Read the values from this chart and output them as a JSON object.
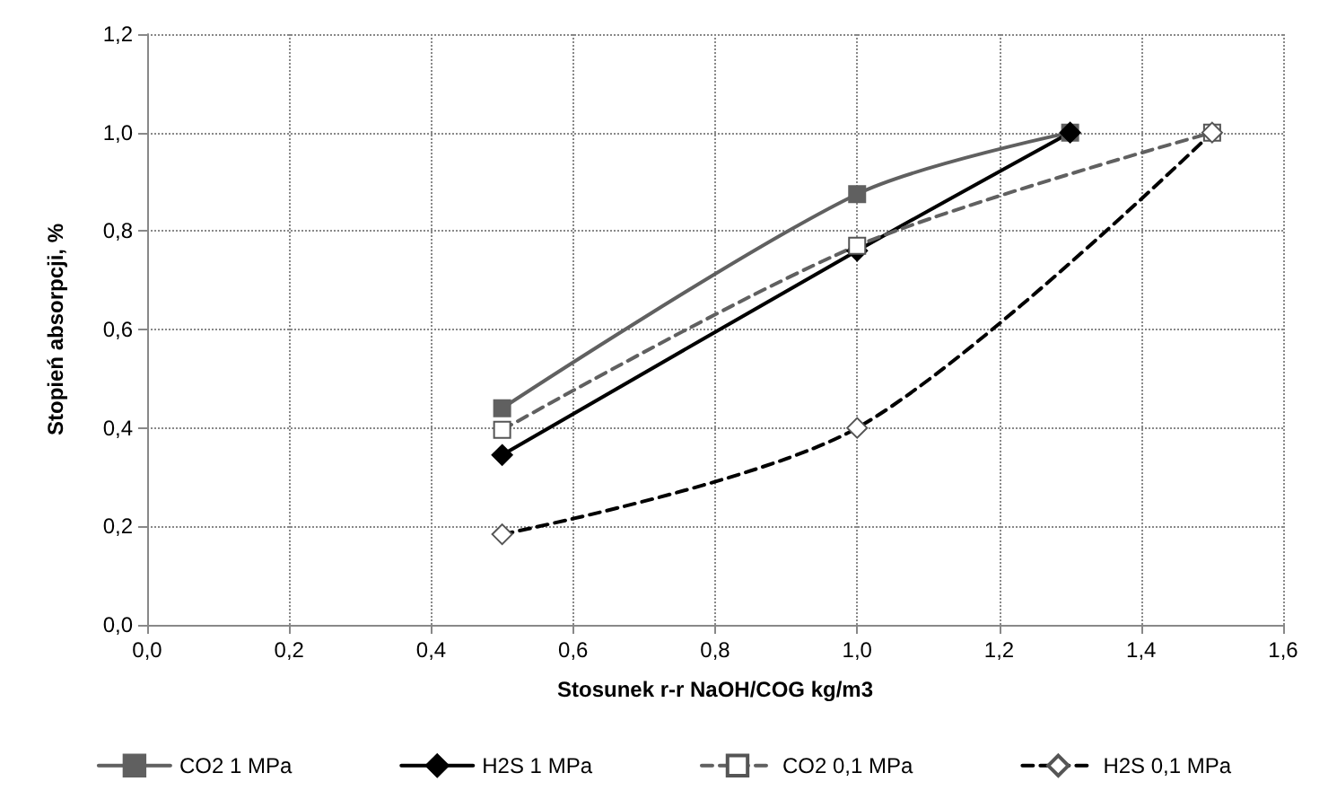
{
  "chart_data": {
    "type": "line",
    "xlabel": "Stosunek r-r NaOH/COG kg/m3",
    "ylabel": "Stopień absorpcji, %",
    "xlim": [
      0,
      1.6
    ],
    "xticks": [
      {
        "value": 0,
        "label": "0,0"
      },
      {
        "value": 0.2,
        "label": "0,2"
      },
      {
        "value": 0.4,
        "label": "0,4"
      },
      {
        "value": 0.6,
        "label": "0,6"
      },
      {
        "value": 0.8,
        "label": "0,8"
      },
      {
        "value": 1,
        "label": "1,0"
      },
      {
        "value": 1.2,
        "label": "1,2"
      },
      {
        "value": 1.4,
        "label": "1,4"
      },
      {
        "value": 1.6,
        "label": "1,6"
      }
    ],
    "ylim": [
      0,
      1.2
    ],
    "yticks": [
      {
        "value": 0,
        "label": "0,0"
      },
      {
        "value": 0.2,
        "label": "0,2"
      },
      {
        "value": 0.4,
        "label": "0,4"
      },
      {
        "value": 0.6,
        "label": "0,6"
      },
      {
        "value": 0.8,
        "label": "0,8"
      },
      {
        "value": 1,
        "label": "1,0"
      },
      {
        "value": 1.2,
        "label": "1,2"
      }
    ],
    "grid": true,
    "legend": "bottom",
    "series": [
      {
        "name": "CO2 1 MPa",
        "color": "#606060",
        "x": [
          0.5,
          1.0,
          1.3
        ],
        "values": [
          0.44,
          0.875,
          1.0
        ],
        "marker": "square",
        "line_style": "solid"
      },
      {
        "name": "H2S 1 MPa",
        "color": "#000000",
        "x": [
          0.5,
          1.0,
          1.3
        ],
        "values": [
          0.345,
          0.76,
          1.0
        ],
        "marker": "diamond",
        "line_style": "solid"
      },
      {
        "name": "CO2 0,1 MPa",
        "color": "#606060",
        "x": [
          0.5,
          1.0,
          1.5
        ],
        "values": [
          0.396,
          0.77,
          1.0
        ],
        "marker": "square",
        "line_style": "dashed"
      },
      {
        "name": "H2S 0,1 MPa",
        "color": "#000000",
        "x": [
          0.5,
          1.0,
          1.5
        ],
        "values": [
          0.184,
          0.4,
          1.0
        ],
        "marker": "diamond",
        "line_style": "dashed"
      }
    ]
  }
}
